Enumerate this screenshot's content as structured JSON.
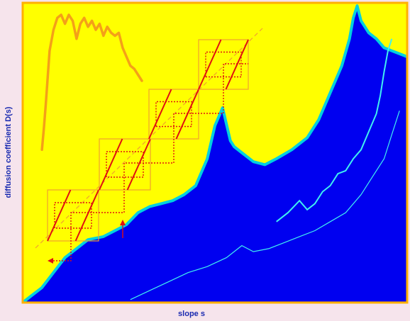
{
  "chart_data": {
    "type": "area",
    "title": "",
    "xlabel": "slope s",
    "ylabel": "diffusion coefficient D(s)",
    "xlim": [
      0,
      1
    ],
    "ylim": [
      0,
      1
    ],
    "grid": false,
    "legend": "none",
    "colors": {
      "plot_background": "#ffff00",
      "plot_border": "#ffb000",
      "filled_region": "#0000f0",
      "region_edge": "#00d0e0",
      "light_curves": "#40f0f0",
      "inset_curve": "#f4a018",
      "map_lines": "#e01010",
      "map_boxes": "#f0a030",
      "axis_label_color": "#1a2ab0"
    },
    "series": [
      {
        "role": "filled-curve",
        "x": [
          0.0,
          0.02,
          0.05,
          0.08,
          0.11,
          0.14,
          0.17,
          0.21,
          0.24,
          0.27,
          0.3,
          0.33,
          0.36,
          0.39,
          0.42,
          0.45,
          0.48,
          0.5,
          0.52,
          0.54,
          0.55,
          0.57,
          0.6,
          0.63,
          0.66,
          0.7,
          0.74,
          0.77,
          0.8,
          0.83,
          0.85,
          0.86,
          0.87,
          0.88,
          0.9,
          0.92,
          0.94,
          0.96,
          0.98,
          1.0
        ],
        "y": [
          0.0,
          0.02,
          0.05,
          0.1,
          0.15,
          0.18,
          0.21,
          0.22,
          0.24,
          0.26,
          0.3,
          0.32,
          0.33,
          0.34,
          0.36,
          0.39,
          0.48,
          0.59,
          0.65,
          0.54,
          0.52,
          0.5,
          0.47,
          0.46,
          0.48,
          0.51,
          0.55,
          0.61,
          0.7,
          0.79,
          0.88,
          0.95,
          0.99,
          0.94,
          0.9,
          0.88,
          0.85,
          0.84,
          0.83,
          0.82
        ]
      },
      {
        "role": "upper-light-curve",
        "x": [
          0.66,
          0.69,
          0.72,
          0.74,
          0.76,
          0.78,
          0.8,
          0.82,
          0.84,
          0.86,
          0.88,
          0.9,
          0.92,
          0.93,
          0.94,
          0.95,
          0.96
        ],
        "y": [
          0.27,
          0.3,
          0.34,
          0.31,
          0.33,
          0.37,
          0.39,
          0.43,
          0.44,
          0.48,
          0.51,
          0.57,
          0.63,
          0.69,
          0.77,
          0.84,
          0.88
        ]
      },
      {
        "role": "lower-light-curve",
        "x": [
          0.28,
          0.33,
          0.38,
          0.43,
          0.48,
          0.53,
          0.57,
          0.6,
          0.64,
          0.68,
          0.72,
          0.76,
          0.8,
          0.84,
          0.88,
          0.91,
          0.94,
          0.96,
          0.98
        ],
        "y": [
          0.01,
          0.04,
          0.07,
          0.1,
          0.12,
          0.15,
          0.19,
          0.17,
          0.18,
          0.2,
          0.22,
          0.24,
          0.27,
          0.3,
          0.36,
          0.42,
          0.48,
          0.56,
          0.64
        ]
      },
      {
        "role": "inset-curve",
        "x": [
          0.05,
          0.055,
          0.06,
          0.065,
          0.07,
          0.08,
          0.09,
          0.1,
          0.11,
          0.12,
          0.13,
          0.14,
          0.15,
          0.16,
          0.17,
          0.18,
          0.19,
          0.2,
          0.21,
          0.22,
          0.23,
          0.24,
          0.25,
          0.26,
          0.27,
          0.28,
          0.29,
          0.3,
          0.31
        ],
        "y": [
          0.51,
          0.58,
          0.66,
          0.75,
          0.84,
          0.91,
          0.95,
          0.96,
          0.93,
          0.96,
          0.94,
          0.88,
          0.93,
          0.95,
          0.92,
          0.94,
          0.91,
          0.93,
          0.89,
          0.92,
          0.9,
          0.89,
          0.9,
          0.85,
          0.82,
          0.79,
          0.78,
          0.76,
          0.74
        ]
      }
    ]
  }
}
